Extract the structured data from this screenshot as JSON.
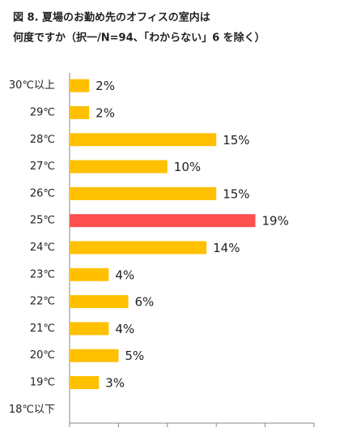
{
  "chart_data": {
    "type": "barh",
    "title": "図 8.  夏場のお勤め先のオフィスの室内は",
    "subtitle": "何度ですか（択一/N=94、「わからない」6 を除く）",
    "categories": [
      "30℃以上",
      "29℃",
      "28℃",
      "27℃",
      "26℃",
      "25℃",
      "24℃",
      "23℃",
      "22℃",
      "21℃",
      "20℃",
      "19℃",
      "18℃以下"
    ],
    "values": [
      2,
      2,
      15,
      10,
      15,
      19,
      14,
      4,
      6,
      4,
      5,
      3,
      null
    ],
    "value_labels": [
      "2%",
      "2%",
      "15%",
      "10%",
      "15%",
      "19%",
      "14%",
      "4%",
      "6%",
      "4%",
      "5%",
      "3%",
      null
    ],
    "colors": [
      "#FFC000",
      "#FFC000",
      "#FFC000",
      "#FFC000",
      "#FFC000",
      "#FF5050",
      "#FFC000",
      "#FFC000",
      "#FFC000",
      "#FFC000",
      "#FFC000",
      "#FFC000",
      "#FFC000"
    ],
    "xlim": [
      0,
      25
    ],
    "xticks": [
      0,
      5,
      10,
      15,
      20,
      25
    ]
  }
}
